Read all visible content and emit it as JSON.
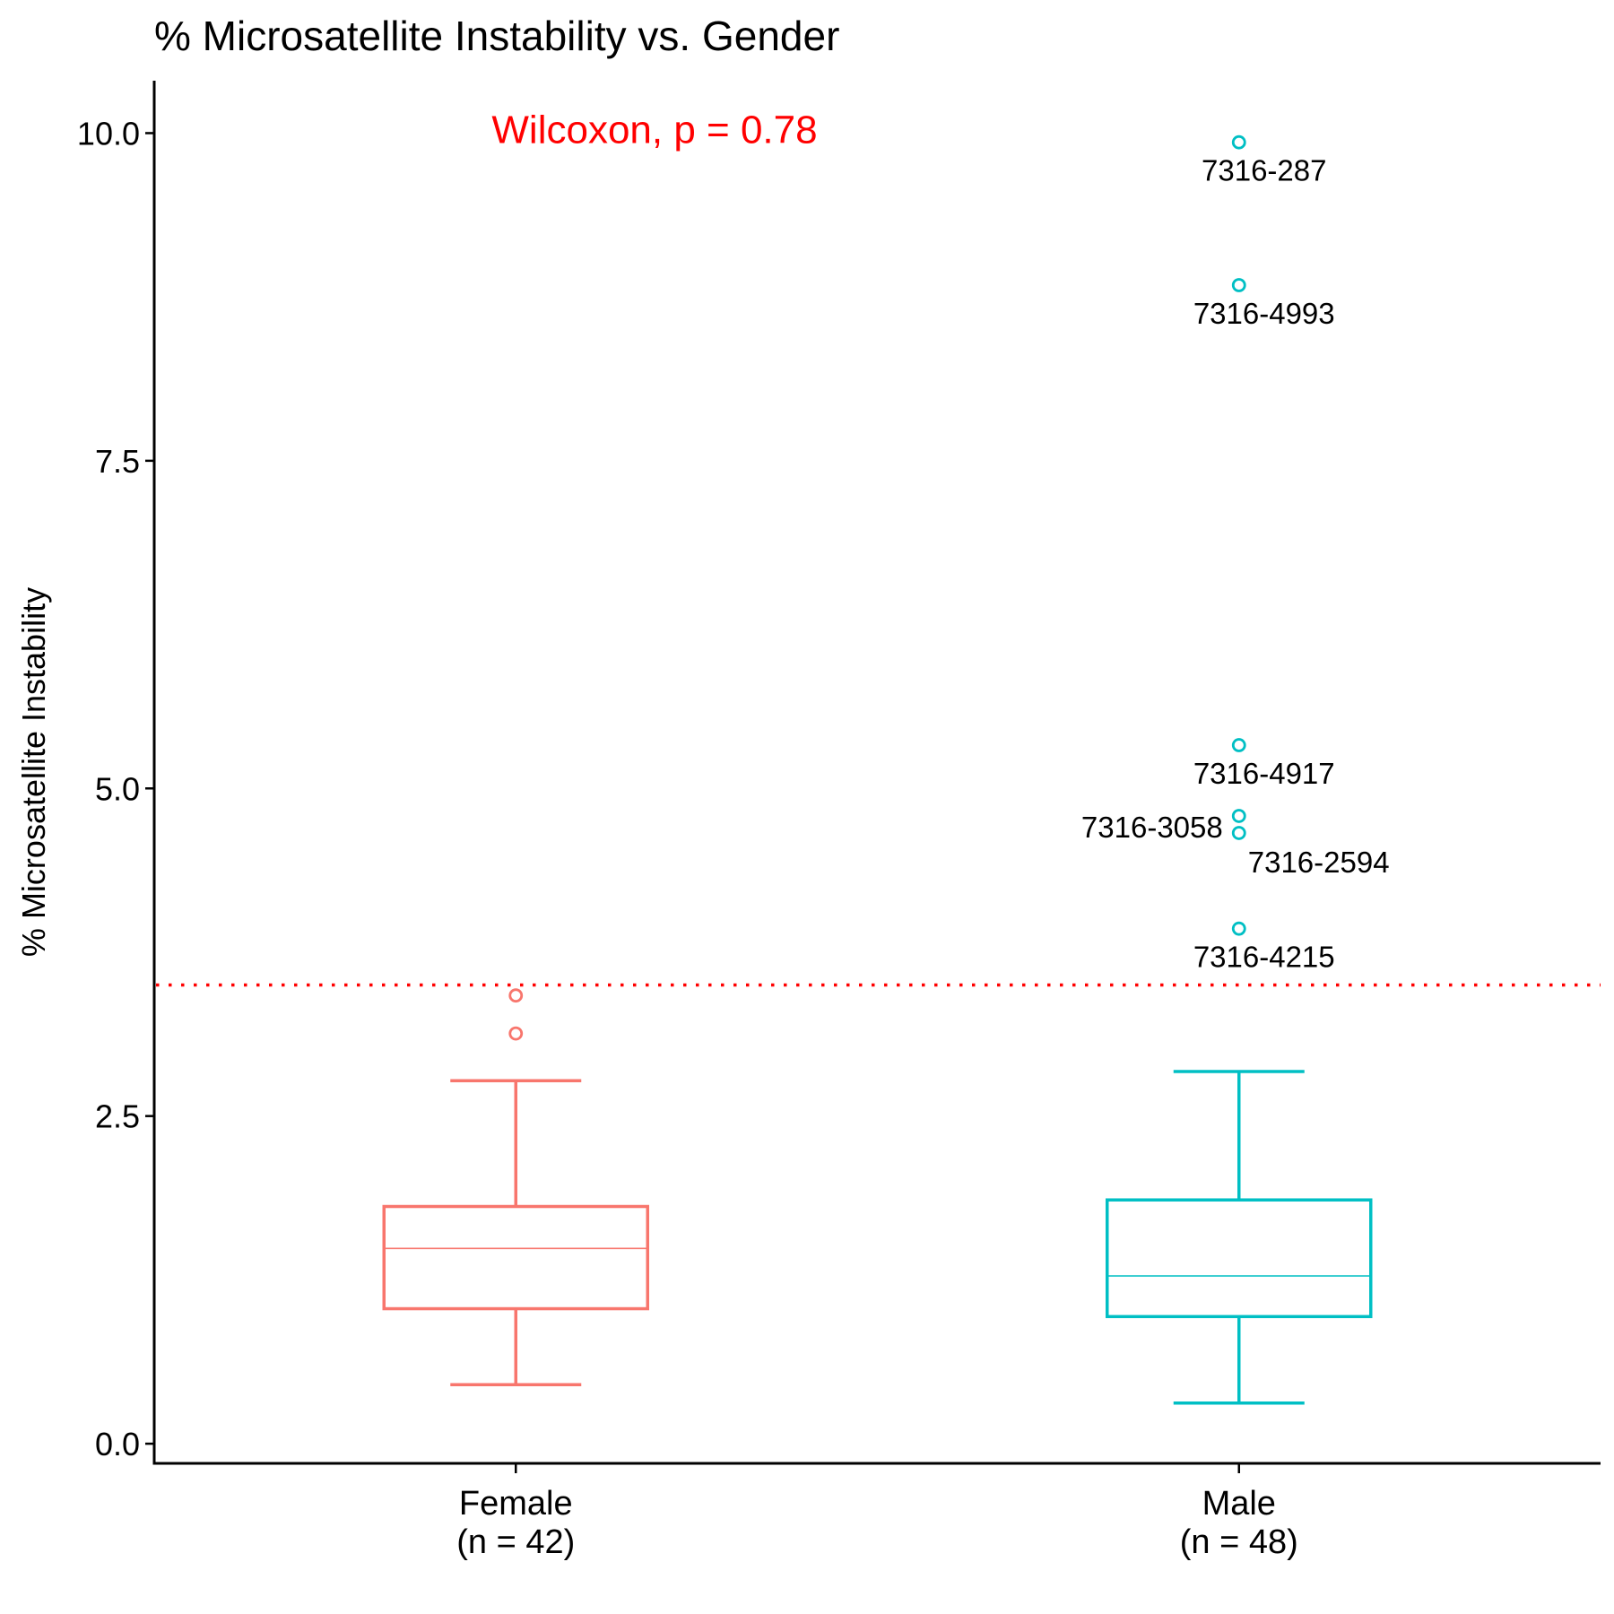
{
  "chart_data": {
    "type": "boxplot",
    "title": "% Microsatellite Instability vs. Gender",
    "ylabel": "% Microsatellite Instability",
    "xlabel": "",
    "ylim": [
      -0.15,
      10.4
    ],
    "yticks": [
      0.0,
      2.5,
      5.0,
      7.5,
      10.0
    ],
    "ytick_labels": [
      "0.0",
      "2.5",
      "5.0",
      "7.5",
      "10.0"
    ],
    "grid": false,
    "legend": "none",
    "threshold": {
      "value": 3.5,
      "color": "#FF0000",
      "style": "dotted"
    },
    "annotation": {
      "text": "Wilcoxon, p = 0.78",
      "color": "#FF0000"
    },
    "groups": [
      {
        "name": "Female",
        "tick_label": [
          "Female",
          "(n = 42)"
        ],
        "color": "#F8766D",
        "whisker_low": 0.45,
        "q1": 1.03,
        "median": 1.49,
        "q3": 1.81,
        "whisker_high": 2.77,
        "outliers": [
          {
            "value": 3.42,
            "label": ""
          },
          {
            "value": 3.13,
            "label": ""
          }
        ]
      },
      {
        "name": "Male",
        "tick_label": [
          "Male",
          "(n = 48)"
        ],
        "color": "#00BFC4",
        "whisker_low": 0.31,
        "q1": 0.97,
        "median": 1.28,
        "q3": 1.86,
        "whisker_high": 2.84,
        "outliers": [
          {
            "value": 9.93,
            "label": "7316-287",
            "label_side": "below"
          },
          {
            "value": 8.84,
            "label": "7316-4993",
            "label_side": "below"
          },
          {
            "value": 5.33,
            "label": "7316-4917",
            "label_side": "below"
          },
          {
            "value": 4.79,
            "label": "7316-3058",
            "label_side": "left"
          },
          {
            "value": 4.66,
            "label": "7316-2594",
            "label_side": "below-right"
          },
          {
            "value": 3.93,
            "label": "7316-4215",
            "label_side": "below"
          }
        ]
      }
    ]
  }
}
